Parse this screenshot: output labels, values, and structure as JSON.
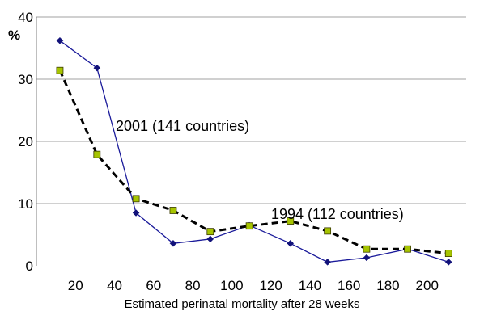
{
  "chart_data": {
    "type": "line",
    "title": "",
    "xlabel": "Estimated perinatal mortality after 28 weeks",
    "ylabel": "%",
    "xlim": [
      0,
      220
    ],
    "ylim": [
      0,
      40
    ],
    "x_ticks": [
      20,
      40,
      60,
      80,
      100,
      120,
      140,
      160,
      180,
      200
    ],
    "y_ticks": [
      0,
      10,
      20,
      30,
      40
    ],
    "grid": "horizontal",
    "legend": "none",
    "annotations": [
      {
        "text": "2001 (141 countries)",
        "series": "2001"
      },
      {
        "text": "1994 (112 countries)",
        "series": "1994"
      }
    ],
    "series": [
      {
        "name": "2001 (141 countries)",
        "style": "solid",
        "color": "#1a1a9a",
        "marker": "diamond",
        "marker_color": "#12127a",
        "x": [
          12,
          31,
          51,
          70,
          89,
          109,
          130,
          149,
          169,
          190,
          211
        ],
        "y": [
          36.2,
          31.8,
          8.5,
          3.6,
          4.3,
          6.5,
          3.6,
          0.6,
          1.3,
          2.7,
          0.6
        ]
      },
      {
        "name": "1994 (112 countries)",
        "style": "dashed",
        "color": "#000000",
        "marker": "square",
        "marker_color": "#a6c400",
        "x": [
          12,
          31,
          51,
          70,
          89,
          109,
          130,
          149,
          169,
          190,
          211
        ],
        "y": [
          31.4,
          17.9,
          10.8,
          8.9,
          5.5,
          6.4,
          7.2,
          5.6,
          2.7,
          2.7,
          2.0
        ]
      }
    ]
  }
}
